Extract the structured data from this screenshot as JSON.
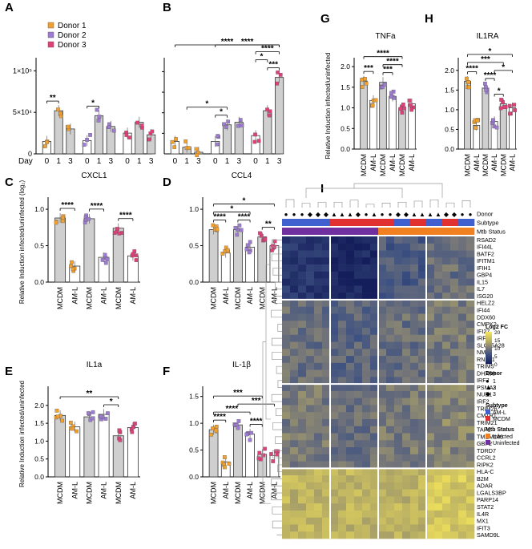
{
  "figure": {
    "panel_letters": [
      "A",
      "B",
      "C",
      "D",
      "E",
      "F",
      "G",
      "H",
      "I"
    ],
    "legend": [
      {
        "label": "Donor 1",
        "color": "#f0a030"
      },
      {
        "label": "Donor 2",
        "color": "#9c7bd0"
      },
      {
        "label": "Donor 3",
        "color": "#e0407a"
      }
    ],
    "day_label": "Day",
    "ytick_1e5": "1×10⁵",
    "ytick_5e4": "5×10⁴",
    "ytick_0": "0",
    "ylabel_log": "Relative Induction infected/uninfected (log₂)",
    "ylabel": "Relative Induction infected/uninfected",
    "xcats": [
      "MCDM",
      "AM-L",
      "MCDM",
      "AM-L",
      "MCDM",
      "AM-L"
    ]
  },
  "colors": {
    "bar_gray": "#cccccc",
    "bar_white": "#ffffff",
    "grid": "#000000",
    "gray": "#c8c8c8"
  },
  "chart_data": [
    {
      "panel": "A",
      "type": "bar",
      "xlabel": "Day",
      "ylabel": "",
      "ylim": [
        0,
        110000
      ],
      "yticks": [
        0,
        50000,
        100000
      ],
      "categories": [
        "0",
        "1",
        "3",
        "0",
        "1",
        "3",
        "0",
        "1",
        "3"
      ],
      "values": [
        15000,
        52000,
        30000,
        16000,
        46000,
        33000,
        25000,
        38000,
        23000
      ],
      "significance": [
        {
          "from": 0,
          "to": 1,
          "label": "**"
        },
        {
          "from": 3,
          "to": 4,
          "label": "*"
        }
      ]
    },
    {
      "panel": "B",
      "type": "bar",
      "xlabel": "",
      "ylabel": "",
      "ylim": [
        0,
        110000
      ],
      "categories": [
        "0",
        "1",
        "3",
        "0",
        "1",
        "3",
        "0",
        "1",
        "3"
      ],
      "values": [
        15000,
        8000,
        2000,
        15000,
        35000,
        38000,
        22000,
        52000,
        92000
      ],
      "significance": [
        {
          "from": 0,
          "to": 8,
          "label": "****"
        },
        {
          "from": 3,
          "to": 8,
          "label": "****"
        },
        {
          "from": 6,
          "to": 8,
          "label": "****"
        },
        {
          "from": 7,
          "to": 8,
          "label": "***"
        },
        {
          "from": 6,
          "to": 7,
          "label": "*"
        },
        {
          "from": 1,
          "to": 4,
          "label": "*"
        },
        {
          "from": 3,
          "to": 4,
          "label": "*"
        }
      ]
    },
    {
      "panel": "C",
      "type": "bar",
      "title": "CXCL1",
      "ylim": [
        0,
        1.1
      ],
      "yticks": [
        0.0,
        0.5,
        1.0
      ],
      "yticklabels": [
        "0.0",
        "0.5",
        "1.0"
      ],
      "categories": [
        "MCDM",
        "AM-L",
        "MCDM",
        "AM-L",
        "MCDM",
        "AM-L"
      ],
      "values": [
        0.88,
        0.22,
        0.87,
        0.34,
        0.74,
        0.36
      ],
      "significance": [
        {
          "from": 0,
          "to": 1,
          "label": "****"
        },
        {
          "from": 2,
          "to": 3,
          "label": "****"
        },
        {
          "from": 4,
          "to": 5,
          "label": "****"
        }
      ]
    },
    {
      "panel": "D",
      "type": "bar",
      "title": "CCL4",
      "ylim": [
        0,
        1.1
      ],
      "yticks": [
        0.0,
        0.5,
        1.0
      ],
      "yticklabels": [
        "0.0",
        "0.5",
        "1.0"
      ],
      "categories": [
        "MCDM",
        "AM-L",
        "MCDM",
        "AM-L",
        "MCDM",
        "AM-L"
      ],
      "values": [
        0.72,
        0.4,
        0.72,
        0.48,
        0.62,
        0.5
      ],
      "significance": [
        {
          "from": 0,
          "to": 5,
          "label": "*"
        },
        {
          "from": 0,
          "to": 3,
          "label": "*"
        },
        {
          "from": 0,
          "to": 1,
          "label": "****"
        },
        {
          "from": 2,
          "to": 3,
          "label": "****"
        },
        {
          "from": 4,
          "to": 5,
          "label": "**"
        }
      ]
    },
    {
      "panel": "E",
      "type": "bar",
      "title": "IL1a",
      "ylim": [
        0,
        2.4
      ],
      "yticks": [
        0.0,
        0.5,
        1.0,
        1.5,
        2.0
      ],
      "yticklabels": [
        "0.0",
        "0.5",
        "1.0",
        "1.5",
        "2.0"
      ],
      "categories": [
        "MCDM",
        "AM-L",
        "MCDM",
        "AM-L",
        "MCDM",
        "AM-L"
      ],
      "values": [
        1.72,
        1.4,
        1.68,
        1.75,
        1.15,
        1.38
      ],
      "significance": [
        {
          "from": 0,
          "to": 4,
          "label": "**"
        },
        {
          "from": 3,
          "to": 4,
          "label": "*"
        }
      ]
    },
    {
      "panel": "F",
      "type": "bar",
      "title": "IL-1β",
      "ylim": [
        0,
        1.6
      ],
      "yticks": [
        0.0,
        0.5,
        1.0,
        1.5
      ],
      "yticklabels": [
        "0.0",
        "0.5",
        "1.0",
        "1.5"
      ],
      "categories": [
        "MCDM",
        "AM-L",
        "MCDM",
        "AM-L",
        "MCDM",
        "AM-L"
      ],
      "values": [
        0.88,
        0.28,
        0.97,
        0.8,
        0.42,
        0.4
      ],
      "significance": [
        {
          "from": 0,
          "to": 4,
          "label": "***"
        },
        {
          "from": 0,
          "to": 3,
          "label": "****"
        },
        {
          "from": 3,
          "to": 4,
          "label": "****"
        },
        {
          "from": 2,
          "to": 5,
          "label": "***"
        },
        {
          "from": 0,
          "to": 1,
          "label": "****"
        }
      ]
    },
    {
      "panel": "G",
      "type": "bar",
      "title": "TNFa",
      "ylim": [
        0,
        2.1
      ],
      "yticks": [
        0.0,
        0.5,
        1.0,
        1.5,
        2.0
      ],
      "yticklabels": [
        "0.0",
        "0.5",
        "1.0",
        "1.5",
        "2.0"
      ],
      "categories": [
        "MCDM",
        "AM-L",
        "MCDM",
        "AM-L",
        "MCDM",
        "AM-L"
      ],
      "values": [
        1.65,
        1.18,
        1.62,
        1.28,
        1.0,
        1.1
      ],
      "significance": [
        {
          "from": 0,
          "to": 4,
          "label": "****"
        },
        {
          "from": 2,
          "to": 4,
          "label": "****"
        },
        {
          "from": 0,
          "to": 1,
          "label": "***"
        },
        {
          "from": 2,
          "to": 3,
          "label": "***"
        }
      ]
    },
    {
      "panel": "H",
      "type": "bar",
      "title": "IL1RA",
      "ylim": [
        0,
        2.2
      ],
      "yticks": [
        0.0,
        0.5,
        1.0,
        1.5,
        2.0
      ],
      "yticklabels": [
        "0.0",
        "0.5",
        "1.0",
        "1.5",
        "2.0"
      ],
      "categories": [
        "MCDM",
        "AM-L",
        "MCDM",
        "AM-L",
        "MCDM",
        "AM-L"
      ],
      "values": [
        1.72,
        0.6,
        1.55,
        0.7,
        1.15,
        1.05
      ],
      "significance": [
        {
          "from": 0,
          "to": 5,
          "label": "*"
        },
        {
          "from": 0,
          "to": 4,
          "label": "***"
        },
        {
          "from": 3,
          "to": 4,
          "label": "*"
        },
        {
          "from": 3,
          "to": 5,
          "label": "*"
        },
        {
          "from": 0,
          "to": 1,
          "label": "****"
        },
        {
          "from": 2,
          "to": 3,
          "label": "****"
        }
      ]
    },
    {
      "panel": "I",
      "type": "heatmap",
      "row_labels": [
        "RSAD2",
        "IFI44L",
        "BATF2",
        "IFITM1",
        "IFIH1",
        "GBP4",
        "IL15",
        "IL7",
        "ISG20",
        "HELZ2",
        "IFI44",
        "DDX60",
        "CMPK2",
        "IFI27",
        "IRF1",
        "SLC25A28",
        "NMI",
        "RNF31",
        "TRIM5",
        "DHX58",
        "IRF7",
        "PSMA3",
        "NUB1",
        "IRF2",
        "TRIM26",
        "CMTR1",
        "TRIM21",
        "TAP1",
        "TMEM140",
        "GBP2",
        "TDRD7",
        "CCRL2",
        "RIPK2",
        "HLA-C",
        "B2M",
        "ADAR",
        "LGALS3BP",
        "PARP14",
        "STAT2",
        "IL4R",
        "MX1",
        "IFIT3",
        "SAMD9L"
      ],
      "annotation_labels": [
        "Donor",
        "Subtype",
        "Mtb Status"
      ],
      "donor_symbols": [
        "●",
        "●",
        "●",
        "◆",
        "◆",
        "◆",
        "▲",
        "▲",
        "▲",
        "◆",
        "●",
        "▲",
        "●",
        "●",
        "◆",
        "◆",
        "▲",
        "▲",
        "▲",
        "▲",
        "◆",
        "◆",
        "●",
        "●"
      ],
      "subtype": [
        "AM-L",
        "AM-L",
        "AM-L",
        "AM-L",
        "AM-L",
        "AM-L",
        "MCDM",
        "MCDM",
        "MCDM",
        "MCDM",
        "MCDM",
        "MCDM",
        "MCDM",
        "MCDM",
        "AM-L",
        "AM-L",
        "MCDM",
        "MCDM",
        "AM-L",
        "AM-L",
        "MCDM",
        "MCDM",
        "AM-L",
        "AM-L"
      ],
      "mtb_status": [
        "Uninfected",
        "Uninfected",
        "Uninfected",
        "Uninfected",
        "Uninfected",
        "Uninfected",
        "Uninfected",
        "Uninfected",
        "Uninfected",
        "Uninfected",
        "Uninfected",
        "Uninfected",
        "Infected",
        "Infected",
        "Infected",
        "Infected",
        "Infected",
        "Infected",
        "Infected",
        "Infected",
        "Infected",
        "Infected",
        "Infected",
        "Infected"
      ],
      "legend": {
        "title": "Log2 FC",
        "ticks": [
          "20",
          "15",
          "10",
          "5",
          "0"
        ],
        "donor_title": "Donor",
        "donor_items": [
          "1",
          "2",
          "3"
        ],
        "subtype_title": "Subtype",
        "subtype_items": [
          {
            "label": "AM-L",
            "color": "#4060d0"
          },
          {
            "label": "MCDM",
            "color": "#e03030"
          }
        ],
        "mtb_title": "Mtb Status",
        "mtb_items": [
          {
            "label": "Infected",
            "color": "#f08020"
          },
          {
            "label": "Uninfected",
            "color": "#7030a0"
          }
        ]
      },
      "block_means": [
        [
          3,
          1,
          7,
          9
        ],
        [
          9,
          8,
          9,
          10
        ],
        [
          10,
          9,
          10,
          11
        ],
        [
          15,
          15,
          15,
          17
        ]
      ],
      "row_blocks": [
        9,
        12,
        12,
        10
      ],
      "col_blocks": [
        6,
        6,
        6,
        6
      ]
    }
  ]
}
